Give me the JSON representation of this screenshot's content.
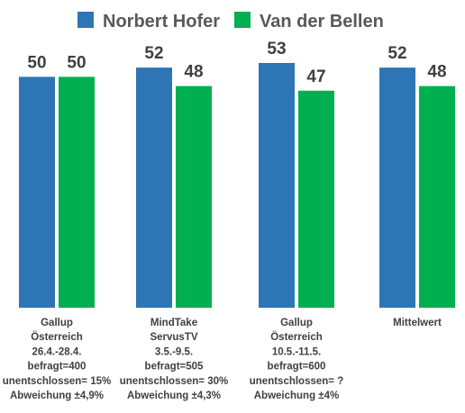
{
  "chart_data": {
    "type": "bar",
    "categories": [
      [
        "Gallup",
        "Österreich",
        "26.4.-28.4.",
        "befragt=400",
        "unentschlossen= 15%",
        "Abweichung ±4,9%"
      ],
      [
        "MindTake",
        "ServusTV",
        "3.5.-9.5.",
        "befragt=505",
        "unentschlossen= 30%",
        "Abweichung ±4,3%"
      ],
      [
        "Gallup",
        "Österreich",
        "10.5.-11.5.",
        "befragt=600",
        "unentschlossen= ?",
        "Abweichung ±4%"
      ],
      [
        "Mittelwert"
      ]
    ],
    "series": [
      {
        "name": "Norbert Hofer",
        "color": "#2e75b6",
        "values": [
          50,
          52,
          53,
          52
        ]
      },
      {
        "name": "Van der Bellen",
        "color": "#00b050",
        "values": [
          50,
          48,
          47,
          48
        ]
      }
    ],
    "ylim": [
      0,
      53
    ],
    "legend_position": "top",
    "grid": false,
    "data_labels": true
  }
}
